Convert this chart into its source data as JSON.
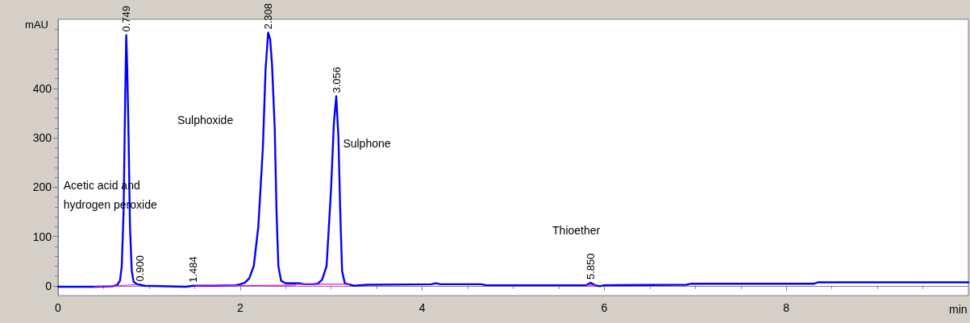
{
  "chart_data": {
    "type": "line",
    "xlabel": "min",
    "ylabel": "mAU",
    "xlim": [
      0,
      10
    ],
    "xticks": [
      0,
      2,
      4,
      6,
      8
    ],
    "ylim": [
      -20,
      540
    ],
    "yticks": [
      0,
      100,
      200,
      300,
      400
    ],
    "marker": "none",
    "line_style": "solid",
    "series": [
      {
        "color": "#0000ff",
        "x": [
          0,
          0.4,
          0.6,
          0.65,
          0.68,
          0.7,
          0.72,
          0.735,
          0.749,
          0.76,
          0.775,
          0.79,
          0.81,
          0.83,
          0.87,
          0.9,
          0.95,
          1.4,
          1.484,
          1.7,
          1.95,
          2.0,
          2.05,
          2.1,
          2.15,
          2.2,
          2.25,
          2.28,
          2.308,
          2.33,
          2.35,
          2.38,
          2.4,
          2.42,
          2.45,
          2.5,
          2.65,
          2.7,
          2.8,
          2.85,
          2.9,
          2.95,
          3.0,
          3.03,
          3.056,
          3.08,
          3.1,
          3.12,
          3.15,
          3.25,
          3.4,
          4.1,
          4.15,
          4.2,
          4.65,
          4.7,
          5.8,
          5.85,
          5.9,
          5.95,
          6.0,
          6.9,
          6.95,
          8.3,
          8.35,
          10
        ],
        "values": [
          -2,
          -2,
          -1,
          2,
          10,
          40,
          150,
          350,
          508,
          440,
          300,
          120,
          30,
          8,
          3,
          2,
          0,
          -2,
          0,
          0,
          1,
          3,
          6,
          15,
          40,
          120,
          280,
          440,
          513,
          500,
          450,
          320,
          150,
          40,
          10,
          5,
          5,
          3,
          3,
          4,
          12,
          40,
          200,
          330,
          384,
          300,
          150,
          30,
          5,
          0,
          2,
          3,
          5,
          3,
          3,
          1,
          1,
          6,
          1,
          -1,
          1,
          2,
          4,
          4,
          7,
          7
        ]
      },
      {
        "color": "#ff00ff",
        "x": [
          0.4,
          0.85,
          0.9,
          1.5,
          2.6,
          2.62,
          3.2,
          3.3,
          5.8,
          5.9
        ],
        "values": [
          -2,
          2,
          null,
          0,
          1,
          3,
          3,
          null,
          1,
          1
        ]
      }
    ],
    "annotations": [
      {
        "text": "0.749",
        "x": 0.749,
        "y": 508
      },
      {
        "text": "0.900",
        "x": 0.9,
        "y": 2
      },
      {
        "text": "1.484",
        "x": 1.484,
        "y": 0
      },
      {
        "text": "2.308",
        "x": 2.308,
        "y": 513
      },
      {
        "text": "3.056",
        "x": 3.056,
        "y": 384
      },
      {
        "text": "5.850",
        "x": 5.85,
        "y": 6
      },
      "Acetic acid and\nhydrogen peroxide",
      "Sulphoxide",
      "Sulphone",
      "Thioether"
    ]
  }
}
